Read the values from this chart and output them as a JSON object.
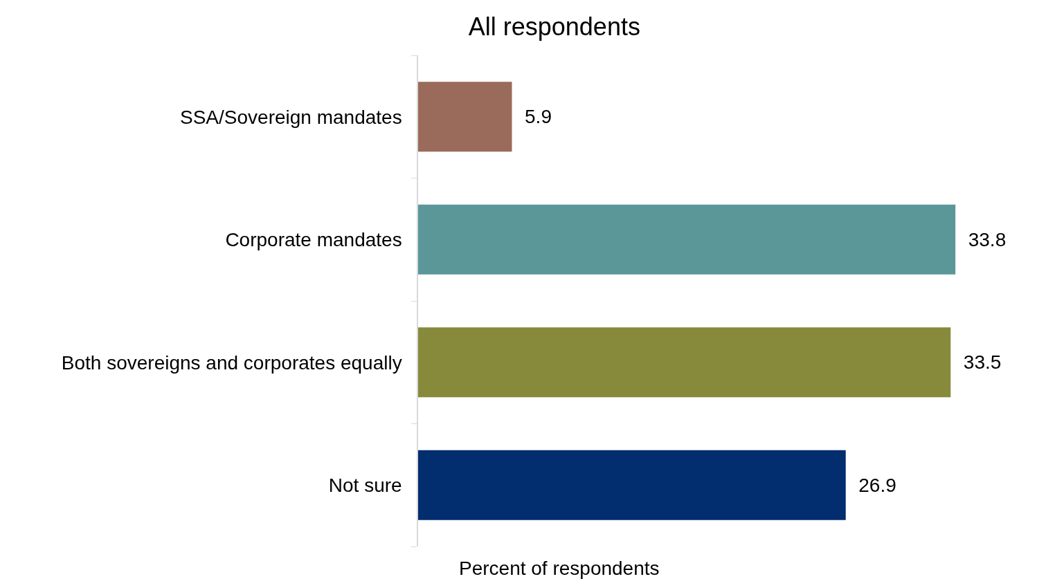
{
  "chart_data": {
    "type": "bar",
    "orientation": "horizontal",
    "title": "All respondents",
    "xlabel": "Percent of respondents",
    "categories": [
      "SSA/Sovereign mandates",
      "Corporate mandates",
      "Both sovereigns and corporates equally",
      "Not sure"
    ],
    "values": [
      5.9,
      33.8,
      33.5,
      26.9
    ],
    "colors": [
      "#9a6b5a",
      "#5b9799",
      "#878a3a",
      "#022d6e"
    ],
    "data_labels": true,
    "tick_labels": "y"
  }
}
